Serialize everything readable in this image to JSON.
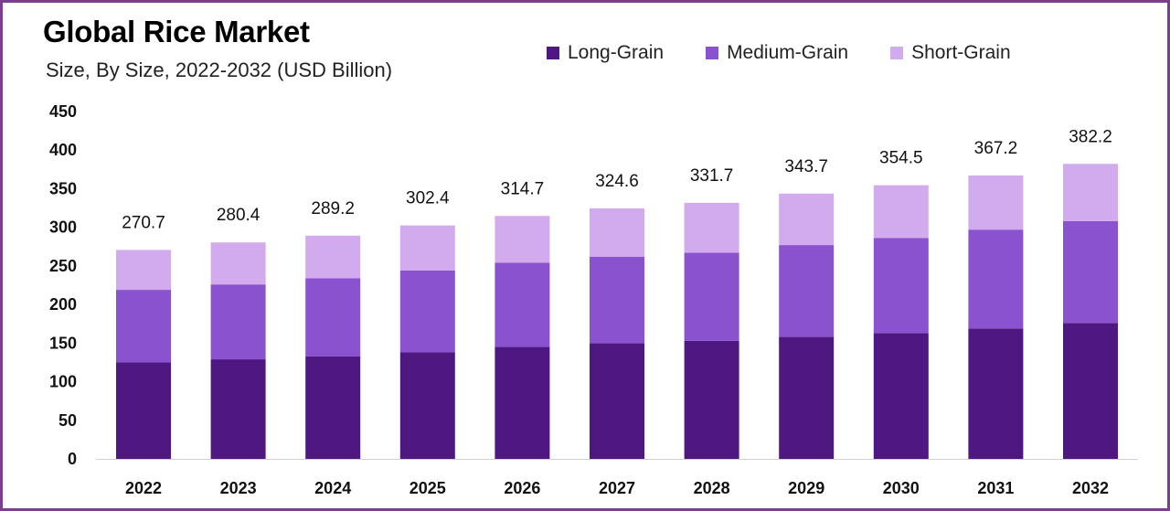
{
  "header": {
    "title": "Global Rice Market",
    "subtitle": "Size, By Size, 2022-2032 (USD Billion)"
  },
  "colors": {
    "long_grain": "#4f1782",
    "medium_grain": "#8b52cf",
    "short_grain": "#d2aaee",
    "frame": "#7b3f8f"
  },
  "chart_data": {
    "type": "bar",
    "stacked": true,
    "title": "Global Rice Market",
    "subtitle": "Size, By Size, 2022-2032 (USD Billion)",
    "xlabel": "",
    "ylabel": "",
    "ylim": [
      0,
      450
    ],
    "yticks": [
      0,
      50,
      100,
      150,
      200,
      250,
      300,
      350,
      400,
      450
    ],
    "categories": [
      "2022",
      "2023",
      "2024",
      "2025",
      "2026",
      "2027",
      "2028",
      "2029",
      "2030",
      "2031",
      "2032"
    ],
    "series": [
      {
        "name": "Long-Grain",
        "values": [
          125,
          129,
          133,
          138,
          145,
          150,
          153,
          158,
          163,
          169,
          176
        ]
      },
      {
        "name": "Medium-Grain",
        "values": [
          94,
          97,
          101,
          106,
          109,
          112,
          114,
          119,
          123,
          128,
          132
        ]
      },
      {
        "name": "Short-Grain",
        "values": [
          51.7,
          54.4,
          55.2,
          58.4,
          60.7,
          62.6,
          64.7,
          66.7,
          68.5,
          70.2,
          74.2
        ]
      }
    ],
    "totals": [
      "270.7",
      "280.4",
      "289.2",
      "302.4",
      "314.7",
      "324.6",
      "331.7",
      "343.7",
      "354.5",
      "367.2",
      "382.2"
    ],
    "legend": [
      "Long-Grain",
      "Medium-Grain",
      "Short-Grain"
    ],
    "legend_position": "top-right",
    "grid": false
  }
}
